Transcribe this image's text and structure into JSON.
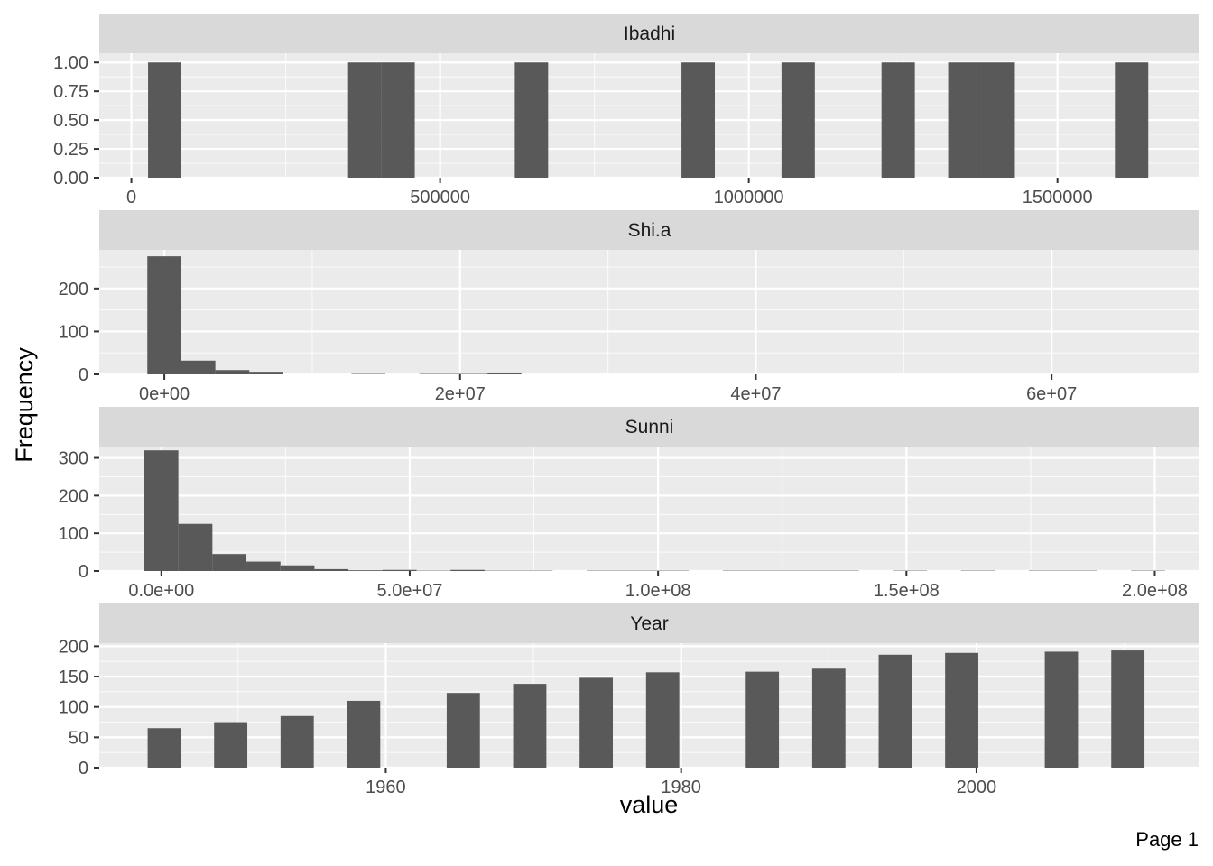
{
  "chart_data": {
    "type": "bar",
    "xlabel": "value",
    "ylabel": "Frequency",
    "page_label": "Page 1",
    "colors": {
      "bar": "#595959",
      "panel": "#ebebeb",
      "strip": "#d9d9d9",
      "grid_major": "#ffffff"
    },
    "panels": [
      {
        "strip": "Ibadhi",
        "xlim": [
          -52000,
          1730000
        ],
        "ylim": [
          0,
          1.08
        ],
        "x_ticks": [
          0,
          500000,
          1000000,
          1500000
        ],
        "x_tick_labels": [
          "0",
          "500000",
          "1000000",
          "1500000"
        ],
        "y_ticks": [
          0,
          0.25,
          0.5,
          0.75,
          1.0
        ],
        "y_tick_labels": [
          "0.00",
          "0.25",
          "0.50",
          "0.75",
          "1.00"
        ],
        "bin_width": 54000,
        "bins": [
          {
            "start": 27000,
            "count": 1
          },
          {
            "start": 351000,
            "count": 1
          },
          {
            "start": 405000,
            "count": 1
          },
          {
            "start": 621000,
            "count": 1
          },
          {
            "start": 891000,
            "count": 1
          },
          {
            "start": 1053000,
            "count": 1
          },
          {
            "start": 1215000,
            "count": 1
          },
          {
            "start": 1323000,
            "count": 1
          },
          {
            "start": 1377000,
            "count": 1
          },
          {
            "start": 1593000,
            "count": 1
          }
        ]
      },
      {
        "strip": "Shi.a",
        "xlim": [
          -4400000,
          70000000
        ],
        "ylim": [
          0,
          290
        ],
        "x_ticks": [
          0,
          20000000,
          40000000,
          60000000
        ],
        "x_tick_labels": [
          "0e+00",
          "2e+07",
          "4e+07",
          "6e+07"
        ],
        "y_ticks": [
          0,
          100,
          200
        ],
        "y_tick_labels": [
          "0",
          "100",
          "200"
        ],
        "bin_width": 2300000,
        "bins": [
          {
            "start": -1150000,
            "count": 275
          },
          {
            "start": 1150000,
            "count": 32
          },
          {
            "start": 3450000,
            "count": 10
          },
          {
            "start": 5750000,
            "count": 6
          },
          {
            "start": 12650000,
            "count": 1
          },
          {
            "start": 17250000,
            "count": 1
          },
          {
            "start": 19550000,
            "count": 1
          },
          {
            "start": 21850000,
            "count": 3
          }
        ]
      },
      {
        "strip": "Sunni",
        "xlim": [
          -12500000,
          209000000
        ],
        "ylim": [
          0,
          330
        ],
        "x_ticks": [
          0,
          50000000,
          100000000,
          150000000,
          200000000
        ],
        "x_tick_labels": [
          "0.0e+00",
          "5.0e+07",
          "1.0e+08",
          "1.5e+08",
          "2.0e+08"
        ],
        "y_ticks": [
          0,
          100,
          200,
          300
        ],
        "y_tick_labels": [
          "0",
          "100",
          "200",
          "300"
        ],
        "bin_width": 6850000,
        "bins": [
          {
            "start": -3425000,
            "count": 320
          },
          {
            "start": 3425000,
            "count": 125
          },
          {
            "start": 10275000,
            "count": 45
          },
          {
            "start": 17125000,
            "count": 25
          },
          {
            "start": 23975000,
            "count": 15
          },
          {
            "start": 30825000,
            "count": 5
          },
          {
            "start": 37675000,
            "count": 2
          },
          {
            "start": 44525000,
            "count": 3
          },
          {
            "start": 51375000,
            "count": 1
          },
          {
            "start": 58225000,
            "count": 3
          },
          {
            "start": 65075000,
            "count": 1
          },
          {
            "start": 71925000,
            "count": 1
          },
          {
            "start": 85625000,
            "count": 1
          },
          {
            "start": 92475000,
            "count": 1
          },
          {
            "start": 99325000,
            "count": 1
          },
          {
            "start": 113025000,
            "count": 1
          },
          {
            "start": 119875000,
            "count": 1
          },
          {
            "start": 126725000,
            "count": 1
          },
          {
            "start": 133575000,
            "count": 1
          },
          {
            "start": 147275000,
            "count": 1
          },
          {
            "start": 160975000,
            "count": 1
          },
          {
            "start": 174675000,
            "count": 1
          },
          {
            "start": 181525000,
            "count": 1
          },
          {
            "start": 195225000,
            "count": 1
          }
        ]
      },
      {
        "strip": "Year",
        "xlim": [
          1940.6,
          2015.1
        ],
        "ylim": [
          0,
          205
        ],
        "x_ticks": [
          1960,
          1980,
          2000
        ],
        "x_tick_labels": [
          "1960",
          "1980",
          "2000"
        ],
        "y_ticks": [
          0,
          50,
          100,
          150,
          200
        ],
        "y_tick_labels": [
          "0",
          "50",
          "100",
          "150",
          "200"
        ],
        "bin_width": 2.25,
        "bins": [
          {
            "start": 1943.875,
            "count": 65
          },
          {
            "start": 1948.375,
            "count": 75
          },
          {
            "start": 1952.875,
            "count": 85
          },
          {
            "start": 1957.375,
            "count": 110
          },
          {
            "start": 1964.125,
            "count": 123
          },
          {
            "start": 1968.625,
            "count": 138
          },
          {
            "start": 1973.125,
            "count": 148
          },
          {
            "start": 1977.625,
            "count": 157
          },
          {
            "start": 1984.375,
            "count": 158
          },
          {
            "start": 1988.875,
            "count": 163
          },
          {
            "start": 1993.375,
            "count": 186
          },
          {
            "start": 1997.875,
            "count": 189
          },
          {
            "start": 2004.625,
            "count": 191
          },
          {
            "start": 2009.125,
            "count": 193
          }
        ]
      }
    ]
  }
}
